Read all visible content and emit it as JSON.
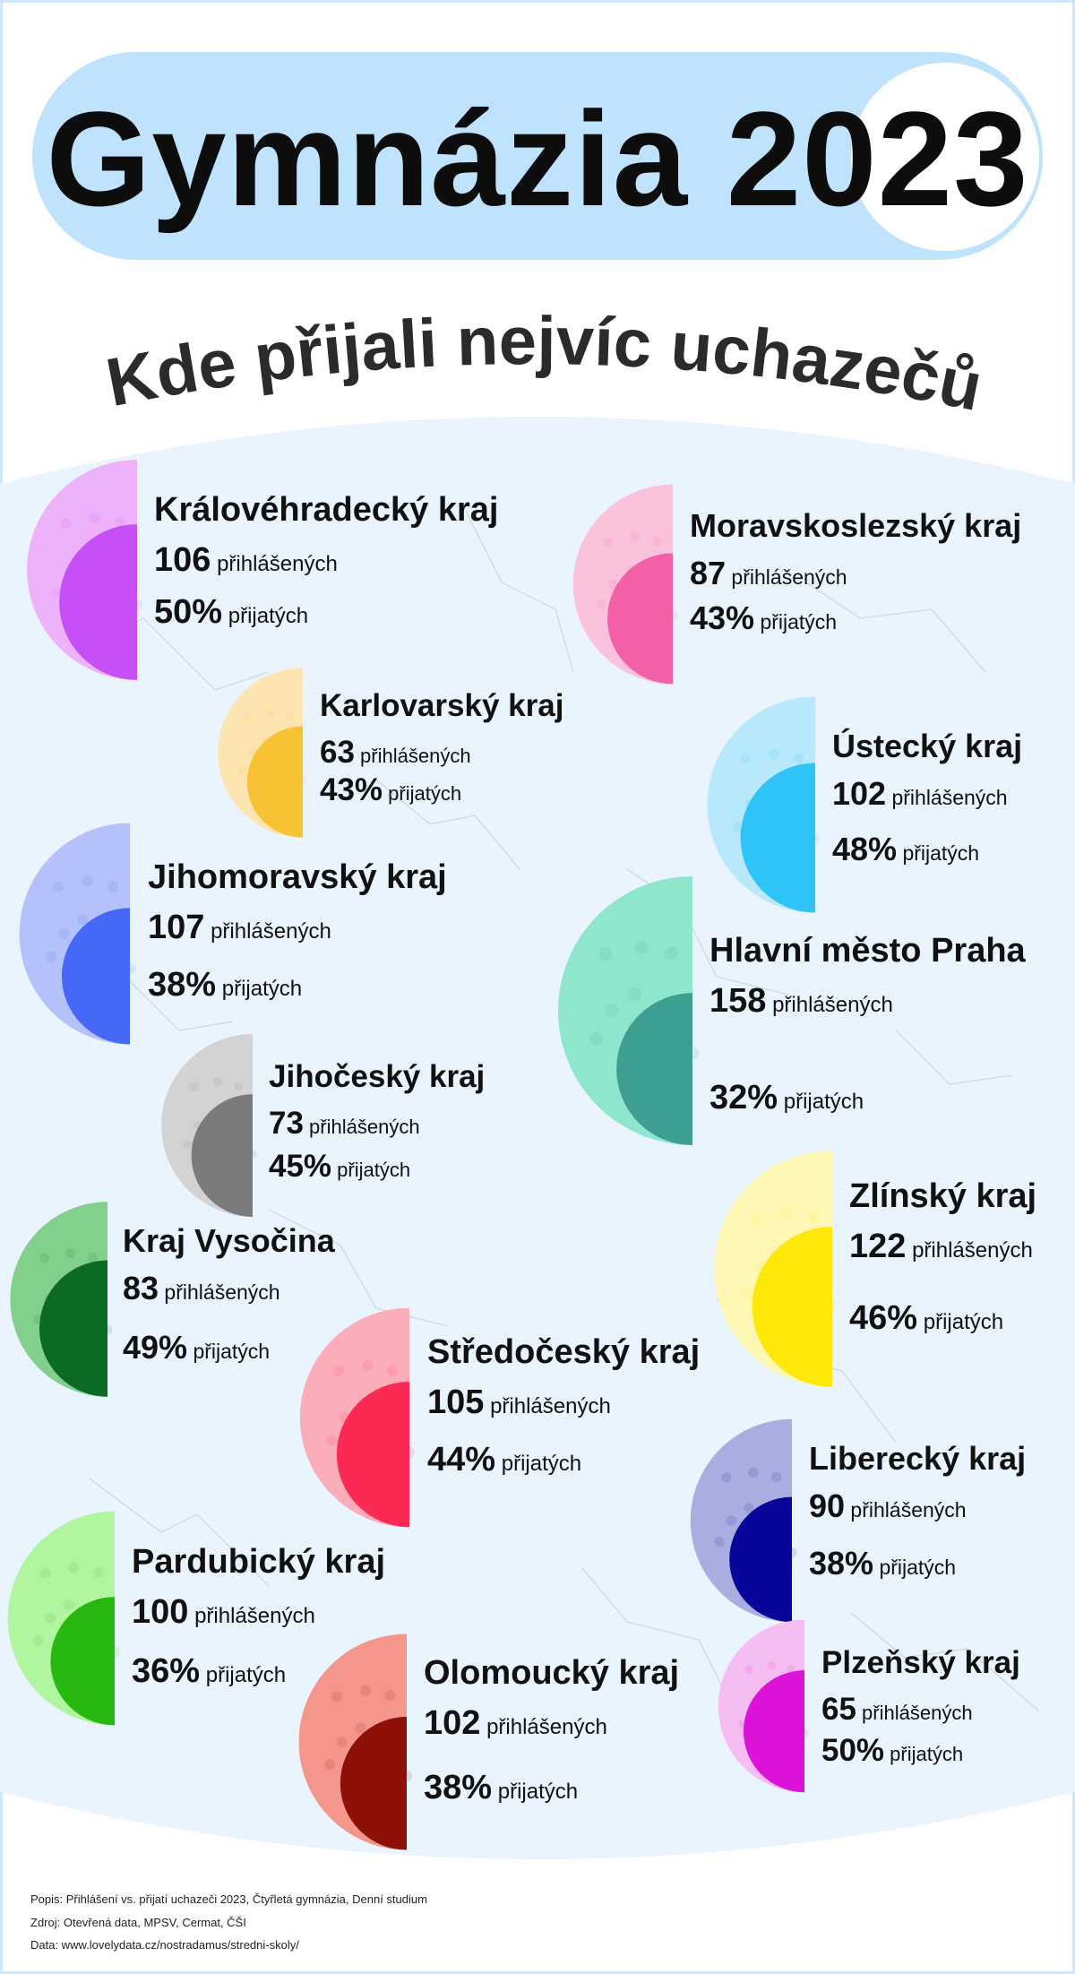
{
  "title": "Gymnázia 2023",
  "subtitle": "Kde přijali nejvíc uchazečů",
  "chart_data": {
    "type": "pie",
    "unit_applied": "přihlášených",
    "unit_accepted": "přijatých",
    "regions": [
      {
        "name": "Královéhradecký kraj",
        "applied": 106,
        "accepted_pct": 50,
        "color": "#c64ff5",
        "light": "#eeb2fb"
      },
      {
        "name": "Moravskoslezský kraj",
        "applied": 87,
        "accepted_pct": 43,
        "color": "#f460a8",
        "light": "#fbc2dc"
      },
      {
        "name": "Karlovarský kraj",
        "applied": 63,
        "accepted_pct": 43,
        "color": "#f9c234",
        "light": "#fde4b1"
      },
      {
        "name": "Ústecký kraj",
        "applied": 102,
        "accepted_pct": 48,
        "color": "#2fc4f7",
        "light": "#b8e8fc"
      },
      {
        "name": "Jihomoravský kraj",
        "applied": 107,
        "accepted_pct": 38,
        "color": "#4569f6",
        "light": "#b5c1fa"
      },
      {
        "name": "Hlavní město Praha",
        "applied": 158,
        "accepted_pct": 32,
        "color": "#3d9e92",
        "light": "#8ee7cd"
      },
      {
        "name": "Jihočeský kraj",
        "applied": 73,
        "accepted_pct": 45,
        "color": "#7b7b7b",
        "light": "#d3d3d3"
      },
      {
        "name": "Zlínský kraj",
        "applied": 122,
        "accepted_pct": 46,
        "color": "#fde80a",
        "light": "#fff8b5"
      },
      {
        "name": "Kraj Vysočina",
        "applied": 83,
        "accepted_pct": 49,
        "color": "#0b6a23",
        "light": "#83d08d"
      },
      {
        "name": "Středočeský kraj",
        "applied": 105,
        "accepted_pct": 44,
        "color": "#fb2a55",
        "light": "#fbadb9"
      },
      {
        "name": "Liberecký kraj",
        "applied": 90,
        "accepted_pct": 38,
        "color": "#07059a",
        "light": "#a9addf"
      },
      {
        "name": "Pardubický kraj",
        "applied": 100,
        "accepted_pct": 36,
        "color": "#27b90f",
        "light": "#b2f5a0"
      },
      {
        "name": "Olomoucký kraj",
        "applied": 102,
        "accepted_pct": 38,
        "color": "#8e1108",
        "light": "#f5968d"
      },
      {
        "name": "Plzeňský kraj",
        "applied": 65,
        "accepted_pct": 50,
        "color": "#db13d9",
        "light": "#f6bdf2"
      }
    ]
  },
  "footer": {
    "line1": "Popis: Přihlášení vs. přijatí uchazeči 2023, Čtyřletá gymnázia, Denní studium",
    "line2": "Zdroj: Otevřená data, MPSV, Cermat, ČŠI",
    "line3": "Data: www.lovelydata.cz/nostradamus/stredni-skoly/"
  }
}
